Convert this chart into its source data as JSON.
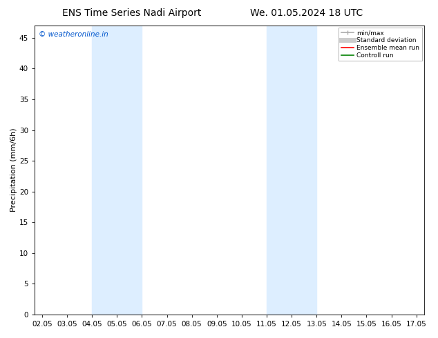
{
  "title_left": "ENS Time Series Nadi Airport",
  "title_right": "We. 01.05.2024 18 UTC",
  "ylabel": "Precipitation (mm/6h)",
  "ylim": [
    0,
    47
  ],
  "yticks": [
    0,
    5,
    10,
    15,
    20,
    25,
    30,
    35,
    40,
    45
  ],
  "xtick_labels": [
    "02.05",
    "03.05",
    "04.05",
    "05.05",
    "06.05",
    "07.05",
    "08.05",
    "09.05",
    "10.05",
    "11.05",
    "12.05",
    "13.05",
    "14.05",
    "15.05",
    "16.05",
    "17.05"
  ],
  "shaded_bands": [
    {
      "xmin": 4.0,
      "xmax": 6.0
    },
    {
      "xmin": 11.0,
      "xmax": 13.0
    }
  ],
  "shade_color": "#ddeeff",
  "legend_items": [
    {
      "label": "min/max",
      "color": "#aaaaaa",
      "lw": 1.2
    },
    {
      "label": "Standard deviation",
      "color": "#cccccc",
      "lw": 5
    },
    {
      "label": "Ensemble mean run",
      "color": "red",
      "lw": 1.2
    },
    {
      "label": "Controll run",
      "color": "green",
      "lw": 1.2
    }
  ],
  "copyright_text": "© weatheronline.in",
  "copyright_color": "#0055cc",
  "background_color": "#ffffff",
  "plot_bg_color": "#ffffff",
  "title_fontsize": 10,
  "axis_fontsize": 8,
  "tick_fontsize": 7.5,
  "xmin": 2.0,
  "xmax": 17.0
}
